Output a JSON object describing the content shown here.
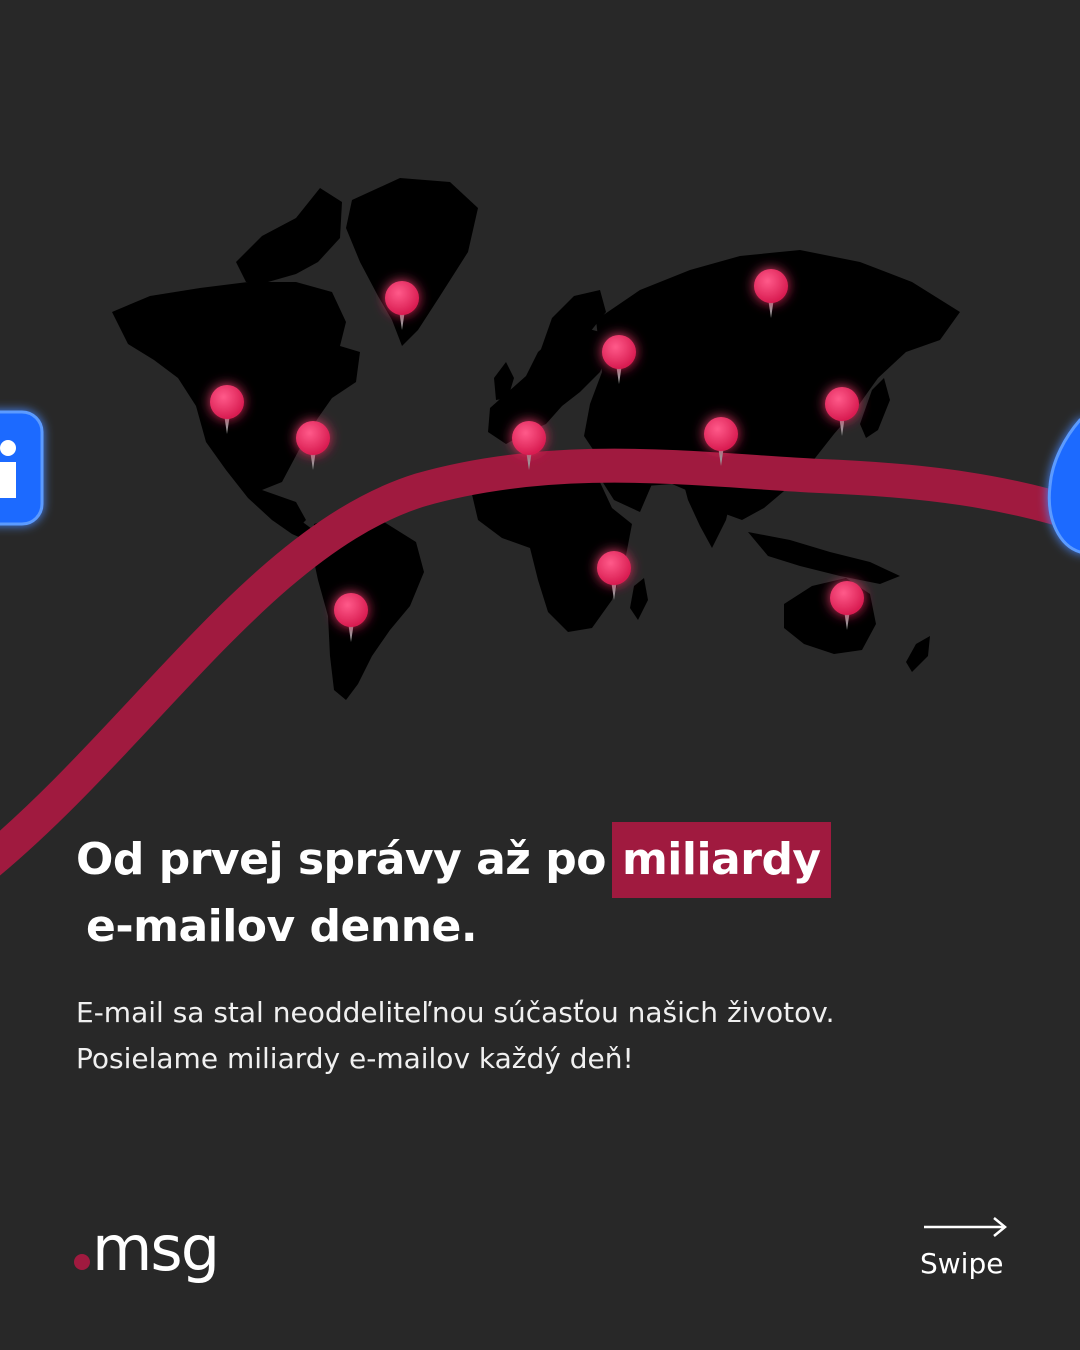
{
  "headline": {
    "part1": "Od prvej správy až po",
    "highlight": "miliardy",
    "part2": "e-mailov denne."
  },
  "body": "E-mail sa stal neoddeliteľnou súčasťou našich životov. Posielame miliardy e-mailov každý deň!",
  "logo": {
    "text": "msg"
  },
  "swipe": {
    "label": "Swipe",
    "icon": "arrow-right-icon"
  },
  "map": {
    "pins": [
      "canada",
      "usa-west",
      "usa-east",
      "greenland",
      "south-america",
      "europe",
      "russia",
      "siberia",
      "china",
      "japan",
      "east-africa",
      "australia"
    ]
  },
  "colors": {
    "background": "#282828",
    "accent": "#a01a3f",
    "pin": "#e8245a",
    "land": "#000000",
    "icon_blue": "#1f6bff"
  }
}
